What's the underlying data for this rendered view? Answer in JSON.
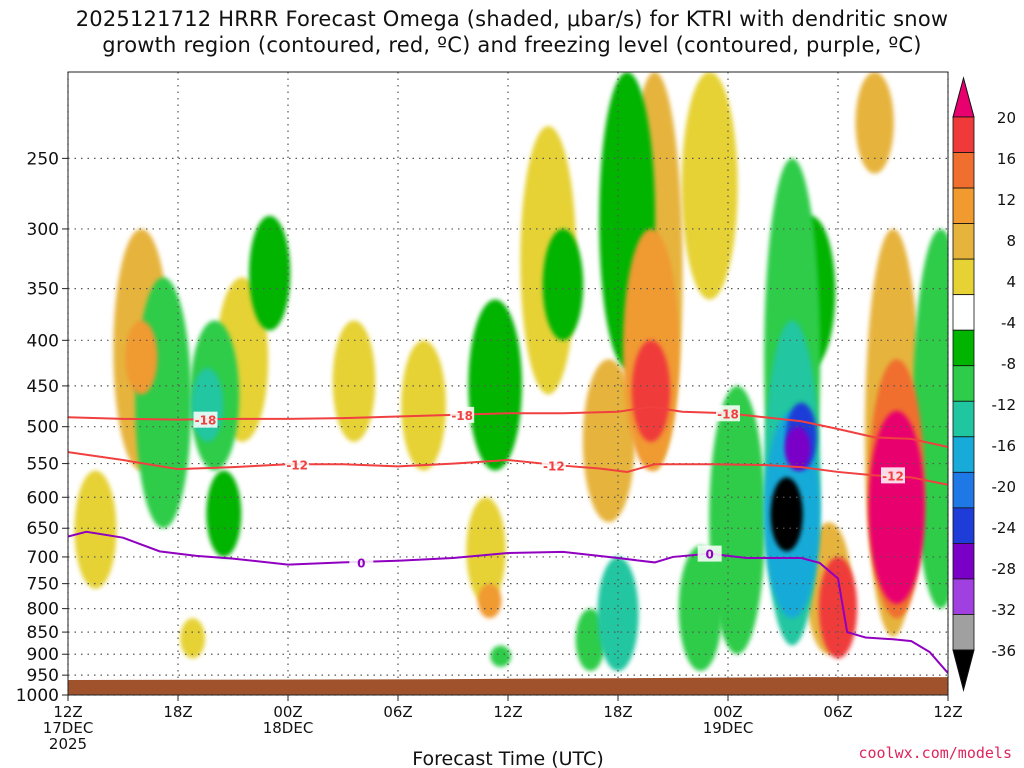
{
  "title_lines": [
    "2025121712 HRRR Forecast Omega (shaded, μbar/s) for KTRI with dendritic snow",
    "growth region (contoured, red, ºC) and freezing level (contoured, purple, ºC)"
  ],
  "credit": "coolwx.com/models",
  "chart_data": {
    "type": "heatmap",
    "title": "2025121712 HRRR Forecast Omega (shaded, μbar/s) for KTRI with dendritic snow growth region (contoured, red, ºC) and freezing level (contoured, purple, ºC)",
    "xlabel": "Forecast Time (UTC)",
    "ylabel": "",
    "x_range_hours": [
      0,
      48
    ],
    "y_range_hpa": [
      200,
      1000
    ],
    "y_ticks": [
      250,
      300,
      350,
      400,
      450,
      500,
      550,
      600,
      650,
      700,
      750,
      800,
      850,
      900,
      950,
      1000
    ],
    "x_ticks": [
      {
        "hour": 0,
        "lines": [
          "12Z",
          "17DEC",
          "2025"
        ]
      },
      {
        "hour": 6,
        "lines": [
          "18Z"
        ]
      },
      {
        "hour": 12,
        "lines": [
          "00Z",
          "18DEC"
        ]
      },
      {
        "hour": 18,
        "lines": [
          "06Z"
        ]
      },
      {
        "hour": 24,
        "lines": [
          "12Z"
        ]
      },
      {
        "hour": 30,
        "lines": [
          "18Z"
        ]
      },
      {
        "hour": 36,
        "lines": [
          "00Z",
          "19DEC"
        ]
      },
      {
        "hour": 42,
        "lines": [
          "06Z"
        ]
      },
      {
        "hour": 48,
        "lines": [
          "12Z"
        ]
      }
    ],
    "colorbar": {
      "labels": [
        20,
        16,
        12,
        8,
        4,
        -4,
        -8,
        -12,
        -16,
        -20,
        -24,
        -28,
        -32,
        -36
      ],
      "colors_top_to_bottom": [
        "#e8006e",
        "#f03a3a",
        "#f06e2e",
        "#f09a30",
        "#e6b43c",
        "#e6d234",
        "#ffffff",
        "#00b400",
        "#2ecc4a",
        "#20c6a0",
        "#18aad8",
        "#1e78e6",
        "#1e3cd8",
        "#7a00c8",
        "#a040e0",
        "#a0a0a0",
        "#000000"
      ]
    },
    "omega_features": [
      {
        "hour": 4.0,
        "p_top": 300,
        "p_bot": 560,
        "value": 6
      },
      {
        "hour": 4.0,
        "p_top": 380,
        "p_bot": 460,
        "value": 10
      },
      {
        "hour": 1.5,
        "p_top": 560,
        "p_bot": 760,
        "value": 5
      },
      {
        "hour": 5.2,
        "p_top": 340,
        "p_bot": 650,
        "value": -8
      },
      {
        "hour": 8.0,
        "p_top": 380,
        "p_bot": 560,
        "value": -10
      },
      {
        "hour": 7.6,
        "p_top": 430,
        "p_bot": 520,
        "value": -13
      },
      {
        "hour": 8.5,
        "p_top": 560,
        "p_bot": 700,
        "value": -6
      },
      {
        "hour": 11.0,
        "p_top": 290,
        "p_bot": 390,
        "value": -7
      },
      {
        "hour": 9.5,
        "p_top": 340,
        "p_bot": 520,
        "value": 5
      },
      {
        "hour": 6.8,
        "p_top": 820,
        "p_bot": 910,
        "value": 5
      },
      {
        "hour": 15.6,
        "p_top": 380,
        "p_bot": 520,
        "value": 5
      },
      {
        "hour": 19.4,
        "p_top": 400,
        "p_bot": 560,
        "value": 5
      },
      {
        "hour": 23.3,
        "p_top": 360,
        "p_bot": 560,
        "value": -7
      },
      {
        "hour": 22.8,
        "p_top": 600,
        "p_bot": 790,
        "value": 4
      },
      {
        "hour": 23.0,
        "p_top": 750,
        "p_bot": 820,
        "value": 8
      },
      {
        "hour": 23.6,
        "p_top": 880,
        "p_bot": 930,
        "value": -9
      },
      {
        "hour": 26.2,
        "p_top": 230,
        "p_bot": 460,
        "value": 5
      },
      {
        "hour": 27.0,
        "p_top": 300,
        "p_bot": 400,
        "value": -6
      },
      {
        "hour": 29.5,
        "p_top": 420,
        "p_bot": 640,
        "value": 6
      },
      {
        "hour": 30.5,
        "p_top": 200,
        "p_bot": 430,
        "value": -7
      },
      {
        "hour": 32.0,
        "p_top": 200,
        "p_bot": 560,
        "value": 6
      },
      {
        "hour": 31.8,
        "p_top": 300,
        "p_bot": 560,
        "value": 10
      },
      {
        "hour": 31.8,
        "p_top": 400,
        "p_bot": 520,
        "value": 16
      },
      {
        "hour": 35.0,
        "p_top": 200,
        "p_bot": 360,
        "value": 5
      },
      {
        "hour": 28.5,
        "p_top": 800,
        "p_bot": 940,
        "value": -10
      },
      {
        "hour": 30.0,
        "p_top": 700,
        "p_bot": 940,
        "value": -12
      },
      {
        "hour": 34.5,
        "p_top": 680,
        "p_bot": 940,
        "value": -11
      },
      {
        "hour": 36.5,
        "p_top": 450,
        "p_bot": 900,
        "value": -9
      },
      {
        "hour": 39.5,
        "p_top": 250,
        "p_bot": 700,
        "value": -8
      },
      {
        "hour": 39.5,
        "p_top": 380,
        "p_bot": 880,
        "value": -14
      },
      {
        "hour": 39.5,
        "p_top": 480,
        "p_bot": 820,
        "value": -19
      },
      {
        "hour": 40.0,
        "p_top": 470,
        "p_bot": 560,
        "value": -26
      },
      {
        "hour": 39.8,
        "p_top": 500,
        "p_bot": 560,
        "value": -30
      },
      {
        "hour": 39.2,
        "p_top": 570,
        "p_bot": 690,
        "value": -36
      },
      {
        "hour": 40.5,
        "p_top": 290,
        "p_bot": 430,
        "value": -7
      },
      {
        "hour": 41.5,
        "p_top": 640,
        "p_bot": 900,
        "value": 6
      },
      {
        "hour": 42.0,
        "p_top": 700,
        "p_bot": 910,
        "value": 16
      },
      {
        "hour": 45.0,
        "p_top": 300,
        "p_bot": 860,
        "value": 6
      },
      {
        "hour": 45.2,
        "p_top": 420,
        "p_bot": 820,
        "value": 14
      },
      {
        "hour": 45.2,
        "p_top": 480,
        "p_bot": 790,
        "value": 20
      },
      {
        "hour": 47.6,
        "p_top": 300,
        "p_bot": 800,
        "value": -10
      },
      {
        "hour": 44.0,
        "p_top": 200,
        "p_bot": 260,
        "value": 6
      }
    ],
    "contours": [
      {
        "name": "-18",
        "color": "#f04040",
        "label_hours": [
          7.5,
          21.5,
          36.0
        ],
        "points": [
          [
            0,
            488
          ],
          [
            3,
            490
          ],
          [
            6,
            491
          ],
          [
            9,
            490
          ],
          [
            12,
            490
          ],
          [
            15,
            489
          ],
          [
            18,
            487
          ],
          [
            21,
            485
          ],
          [
            24,
            483
          ],
          [
            27,
            483
          ],
          [
            30,
            481
          ],
          [
            31.8,
            475
          ],
          [
            33.5,
            481
          ],
          [
            36,
            483
          ],
          [
            38,
            488
          ],
          [
            40,
            493
          ],
          [
            42,
            503
          ],
          [
            44,
            514
          ],
          [
            46,
            516
          ],
          [
            48,
            527
          ]
        ]
      },
      {
        "name": "-12",
        "color": "#f04040",
        "label_hours": [
          12.5,
          26.5,
          45.0
        ],
        "points": [
          [
            0,
            534
          ],
          [
            3,
            545
          ],
          [
            6,
            558
          ],
          [
            9,
            555
          ],
          [
            12,
            551
          ],
          [
            15,
            551
          ],
          [
            18,
            554
          ],
          [
            21,
            550
          ],
          [
            24,
            545
          ],
          [
            27,
            553
          ],
          [
            29,
            557
          ],
          [
            30.5,
            562
          ],
          [
            32,
            551
          ],
          [
            35,
            551
          ],
          [
            38,
            552
          ],
          [
            40,
            555
          ],
          [
            42,
            562
          ],
          [
            44,
            567
          ],
          [
            46,
            570
          ],
          [
            48,
            581
          ]
        ]
      },
      {
        "name": "0",
        "color": "#9000c0",
        "label_hours": [
          16.0,
          35.0
        ],
        "points": [
          [
            0,
            664
          ],
          [
            1,
            656
          ],
          [
            3,
            666
          ],
          [
            5,
            690
          ],
          [
            7,
            698
          ],
          [
            9,
            703
          ],
          [
            12,
            714
          ],
          [
            15,
            710
          ],
          [
            18,
            707
          ],
          [
            21,
            702
          ],
          [
            24,
            693
          ],
          [
            27,
            691
          ],
          [
            30,
            702
          ],
          [
            32,
            710
          ],
          [
            33,
            700
          ],
          [
            35,
            694
          ],
          [
            37,
            702
          ],
          [
            40,
            702
          ],
          [
            41,
            711
          ],
          [
            42,
            740
          ],
          [
            42.5,
            850
          ],
          [
            43.5,
            862
          ],
          [
            45,
            866
          ],
          [
            46,
            870
          ],
          [
            47,
            895
          ],
          [
            48,
            945
          ]
        ]
      }
    ]
  }
}
